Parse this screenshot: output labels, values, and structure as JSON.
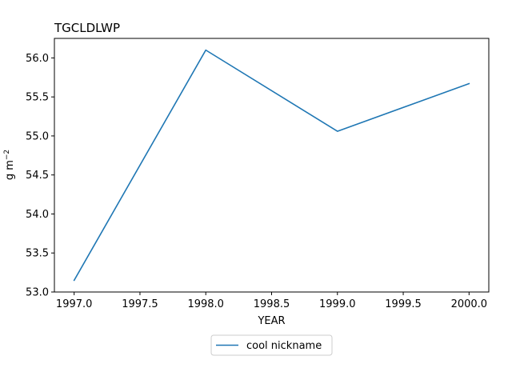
{
  "chart_data": {
    "type": "line",
    "title": "TGCLDLWP",
    "xlabel": "YEAR",
    "ylabel_base": "g m",
    "ylabel_exponent": "−2",
    "xlim": [
      1996.85,
      2000.15
    ],
    "ylim": [
      53.0,
      56.25
    ],
    "xticks": [
      1997.0,
      1997.5,
      1998.0,
      1998.5,
      1999.0,
      1999.5,
      2000.0
    ],
    "xtick_labels": [
      "1997.0",
      "1997.5",
      "1998.0",
      "1998.5",
      "1999.0",
      "1999.5",
      "2000.0"
    ],
    "yticks": [
      53.0,
      53.5,
      54.0,
      54.5,
      55.0,
      55.5,
      56.0
    ],
    "ytick_labels": [
      "53.0",
      "53.5",
      "54.0",
      "54.5",
      "55.0",
      "55.5",
      "56.0"
    ],
    "grid": false,
    "legend_position": "below-center",
    "series": [
      {
        "name": "cool nickname",
        "color": "#1f77b4",
        "x": [
          1997,
          1998,
          1999,
          2000
        ],
        "y": [
          53.15,
          56.1,
          55.06,
          55.67
        ]
      }
    ]
  }
}
